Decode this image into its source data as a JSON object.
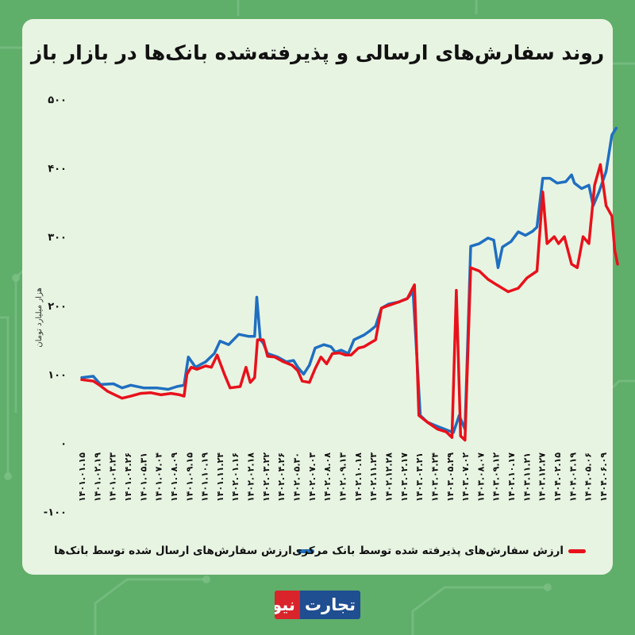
{
  "title": "روند سفارش‌های ارسالی و پذیرفته‌شده بانک‌ها در بازار باز",
  "brand": {
    "part_a": "تجارت",
    "part_b": "نیوز"
  },
  "colors": {
    "background": "#5fae6a",
    "card": "#e8f4e2",
    "blue": "#1f6fc0",
    "red": "#e8111b"
  },
  "chart_data": {
    "type": "line",
    "title": "روند سفارش‌های ارسالی و پذیرفته‌شده بانک‌ها در بازار باز",
    "ylabel": "هزار میلیارد تومان",
    "xlabel": "",
    "ylim": [
      -100,
      500
    ],
    "yticks": [
      "۵۰۰",
      "۴۰۰",
      "۳۰۰",
      "۲۰۰",
      "۱۰۰",
      "۰",
      "-۱۰۰"
    ],
    "ytick_values": [
      500,
      400,
      300,
      200,
      100,
      0,
      -100
    ],
    "grid": false,
    "legend_position": "bottom",
    "categories": [
      "۱۴۰۱.۰۱.۱۵",
      "۱۴۰۱.۰۲.۱۹",
      "۱۴۰۱.۰۳.۲۳",
      "۱۴۰۱.۰۴.۲۶",
      "۱۴۰۱.۰۵.۳۱",
      "۱۴۰۱.۰۷.۰۴",
      "۱۴۰۱.۰۸.۰۹",
      "۱۴۰۱.۰۹.۱۵",
      "۱۴۰۱.۱۰.۱۹",
      "۱۴۰۱.۱۱.۲۴",
      "۱۴۰۲.۰۱.۱۶",
      "۱۴۰۲.۰۲.۱۸",
      "۱۴۰۲.۰۳.۲۲",
      "۱۴۰۲.۰۴.۲۶",
      "۱۴۰۲.۰۵.۳۰",
      "۱۴۰۲.۰۷.۰۳",
      "۱۴۰۲.۰۸.۰۸",
      "۱۴۰۲.۰۹.۱۳",
      "۱۴۰۲.۱۰.۱۸",
      "۱۴۰۲.۱۱.۲۳",
      "۱۴۰۲.۱۲.۲۸",
      "۱۴۰۳.۰۲.۱۷",
      "۱۴۰۳.۰۳.۲۱",
      "۱۴۰۳.۰۴.۲۴",
      "۱۴۰۳.۰۵.۲۹",
      "۱۴۰۳.۰۷.۰۲",
      "۱۴۰۳.۰۸.۰۷",
      "۱۴۰۳.۰۹.۱۲",
      "۱۴۰۳.۱۰.۱۷",
      "۱۴۰۳.۱۱.۲۱",
      "۱۴۰۳.۱۲.۲۷",
      "۱۴۰۴.۰۲.۱۵",
      "۱۴۰۴.۰۳.۱۹",
      "۱۴۰۴.۰۵.۰۶",
      "۱۴۰۴.۰۶.۰۹"
    ],
    "series": [
      {
        "name": "ارزش سفارش‌های ارسال شده توسط بانک‌ها",
        "color": "#1f6fc0",
        "points": [
          [
            0,
            95
          ],
          [
            0.8,
            97
          ],
          [
            1.3,
            85
          ],
          [
            2.2,
            86
          ],
          [
            2.8,
            80
          ],
          [
            3.4,
            84
          ],
          [
            4.3,
            80
          ],
          [
            5.2,
            80
          ],
          [
            6.0,
            78
          ],
          [
            6.6,
            82
          ],
          [
            7.1,
            84
          ],
          [
            7.4,
            125
          ],
          [
            7.9,
            110
          ],
          [
            8.6,
            118
          ],
          [
            9.2,
            130
          ],
          [
            9.6,
            148
          ],
          [
            10.2,
            143
          ],
          [
            10.9,
            158
          ],
          [
            11.6,
            155
          ],
          [
            12.0,
            155
          ],
          [
            12.15,
            212
          ],
          [
            12.4,
            150
          ],
          [
            12.6,
            145
          ],
          [
            12.9,
            130
          ],
          [
            13.6,
            125
          ],
          [
            14.2,
            118
          ],
          [
            14.7,
            120
          ],
          [
            15.0,
            110
          ],
          [
            15.4,
            100
          ],
          [
            15.8,
            113
          ],
          [
            16.2,
            138
          ],
          [
            16.8,
            143
          ],
          [
            17.3,
            140
          ],
          [
            17.6,
            132
          ],
          [
            18.0,
            135
          ],
          [
            18.5,
            130
          ],
          [
            18.9,
            150
          ],
          [
            19.6,
            157
          ],
          [
            20.0,
            163
          ],
          [
            20.4,
            170
          ],
          [
            20.8,
            196
          ],
          [
            21.3,
            202
          ],
          [
            22.0,
            205
          ],
          [
            22.6,
            210
          ],
          [
            23.0,
            220
          ],
          [
            23.5,
            40
          ],
          [
            24.0,
            30
          ],
          [
            24.7,
            24
          ],
          [
            25.2,
            20
          ],
          [
            25.8,
            15
          ],
          [
            26.2,
            40
          ],
          [
            26.6,
            20
          ],
          [
            27.0,
            286
          ],
          [
            27.6,
            290
          ],
          [
            28.2,
            298
          ],
          [
            28.6,
            295
          ],
          [
            28.9,
            255
          ],
          [
            29.2,
            285
          ],
          [
            29.8,
            293
          ],
          [
            30.3,
            307
          ],
          [
            30.8,
            302
          ],
          [
            31.3,
            308
          ],
          [
            31.6,
            314
          ],
          [
            32.0,
            385
          ],
          [
            32.5,
            385
          ],
          [
            33.0,
            378
          ],
          [
            33.6,
            380
          ],
          [
            34.0,
            390
          ],
          [
            34.2,
            378
          ],
          [
            34.7,
            370
          ],
          [
            35.2,
            375
          ],
          [
            35.5,
            345
          ],
          [
            35.9,
            365
          ],
          [
            36.4,
            395
          ],
          [
            36.8,
            448
          ],
          [
            37.1,
            458
          ]
        ]
      },
      {
        "name": "ارزش سفارش‌های پذیرفته شده توسط بانک مرکزی",
        "color": "#e8111b",
        "points": [
          [
            0,
            92
          ],
          [
            0.8,
            90
          ],
          [
            1.3,
            83
          ],
          [
            1.8,
            75
          ],
          [
            2.3,
            70
          ],
          [
            2.8,
            65
          ],
          [
            3.4,
            68
          ],
          [
            4.1,
            72
          ],
          [
            4.8,
            73
          ],
          [
            5.5,
            70
          ],
          [
            6.2,
            72
          ],
          [
            6.8,
            70
          ],
          [
            7.1,
            68
          ],
          [
            7.3,
            100
          ],
          [
            7.6,
            110
          ],
          [
            8.0,
            107
          ],
          [
            8.6,
            112
          ],
          [
            9.0,
            110
          ],
          [
            9.4,
            128
          ],
          [
            9.9,
            100
          ],
          [
            10.3,
            80
          ],
          [
            11.0,
            82
          ],
          [
            11.4,
            110
          ],
          [
            11.7,
            88
          ],
          [
            12.0,
            95
          ],
          [
            12.2,
            150
          ],
          [
            12.6,
            150
          ],
          [
            12.9,
            126
          ],
          [
            13.4,
            125
          ],
          [
            14.0,
            118
          ],
          [
            14.6,
            113
          ],
          [
            15.0,
            105
          ],
          [
            15.3,
            90
          ],
          [
            15.8,
            88
          ],
          [
            16.2,
            108
          ],
          [
            16.6,
            125
          ],
          [
            17.0,
            115
          ],
          [
            17.4,
            130
          ],
          [
            17.9,
            131
          ],
          [
            18.3,
            128
          ],
          [
            18.7,
            128
          ],
          [
            19.2,
            138
          ],
          [
            19.6,
            140
          ],
          [
            20.0,
            145
          ],
          [
            20.4,
            150
          ],
          [
            20.8,
            196
          ],
          [
            21.3,
            200
          ],
          [
            22.0,
            205
          ],
          [
            22.6,
            210
          ],
          [
            23.1,
            230
          ],
          [
            23.4,
            40
          ],
          [
            24.0,
            30
          ],
          [
            24.7,
            20
          ],
          [
            25.3,
            16
          ],
          [
            25.7,
            8
          ],
          [
            26.0,
            222
          ],
          [
            26.3,
            10
          ],
          [
            26.6,
            4
          ],
          [
            27.0,
            255
          ],
          [
            27.6,
            250
          ],
          [
            28.2,
            238
          ],
          [
            28.8,
            230
          ],
          [
            29.6,
            220
          ],
          [
            30.3,
            225
          ],
          [
            30.9,
            240
          ],
          [
            31.6,
            250
          ],
          [
            32.0,
            365
          ],
          [
            32.3,
            290
          ],
          [
            32.8,
            300
          ],
          [
            33.1,
            290
          ],
          [
            33.5,
            300
          ],
          [
            34.0,
            260
          ],
          [
            34.4,
            255
          ],
          [
            34.8,
            300
          ],
          [
            35.2,
            290
          ],
          [
            35.6,
            375
          ],
          [
            36.0,
            405
          ],
          [
            36.4,
            345
          ],
          [
            36.8,
            330
          ],
          [
            37.0,
            280
          ],
          [
            37.2,
            260
          ]
        ]
      }
    ]
  }
}
